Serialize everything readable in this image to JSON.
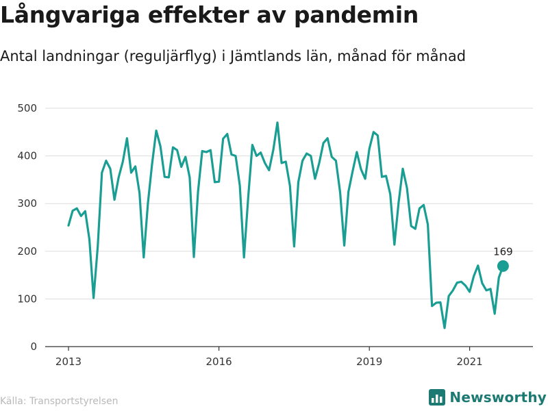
{
  "title": "Långvariga effekter av pandemin",
  "subtitle": "Antal landningar (reguljärflyg) i Jämtlands län, månad för månad",
  "source": "Källa: Transportstyrelsen",
  "brand": {
    "name": "Newsworthy",
    "icon": "bar-chart-logo-icon"
  },
  "colors": {
    "line": "#1a9e93",
    "grid": "#dddddd",
    "axis": "#333333",
    "brand": "#1c7a72"
  },
  "chart_data": {
    "type": "line",
    "title": "Långvariga effekter av pandemin",
    "subtitle": "Antal landningar (reguljärflyg) i Jämtlands län, månad för månad",
    "ylim": [
      0,
      500
    ],
    "yticks": [
      0,
      100,
      200,
      300,
      400,
      500
    ],
    "xticks": [
      {
        "label": "2013",
        "date": "2013-01"
      },
      {
        "label": "2016",
        "date": "2016-01"
      },
      {
        "label": "2019",
        "date": "2019-01"
      },
      {
        "label": "2021",
        "date": "2021-01"
      }
    ],
    "start_month": "2013-01",
    "values": [
      254,
      285,
      290,
      274,
      284,
      225,
      102,
      210,
      365,
      390,
      373,
      308,
      355,
      388,
      437,
      365,
      378,
      322,
      187,
      300,
      383,
      453,
      420,
      356,
      355,
      418,
      412,
      377,
      398,
      355,
      188,
      325,
      410,
      408,
      412,
      345,
      346,
      436,
      446,
      403,
      400,
      338,
      187,
      312,
      423,
      400,
      407,
      385,
      370,
      412,
      470,
      385,
      388,
      337,
      210,
      345,
      390,
      405,
      400,
      352,
      385,
      427,
      437,
      398,
      390,
      324,
      212,
      325,
      368,
      408,
      372,
      352,
      415,
      450,
      443,
      356,
      358,
      320,
      214,
      302,
      373,
      333,
      253,
      247,
      290,
      297,
      256,
      85,
      92,
      93,
      39,
      106,
      118,
      134,
      136,
      128,
      115,
      148,
      170,
      133,
      118,
      121,
      69,
      145,
      169
    ],
    "last_value_label": "169",
    "series": [
      {
        "name": "",
        "color": "#1a9e93"
      }
    ]
  }
}
